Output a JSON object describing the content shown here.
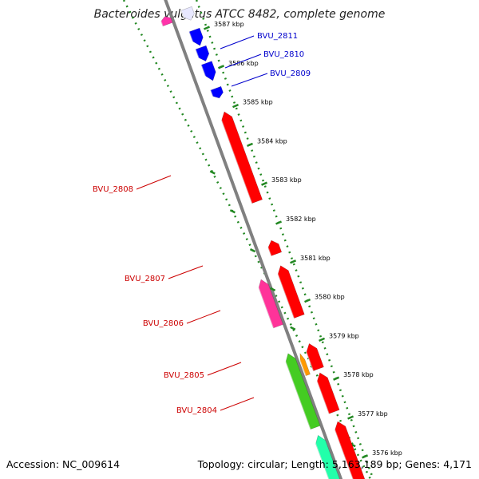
{
  "title": "Bacteroides vulgatus ATCC 8482, complete genome",
  "footer": {
    "accession": "Accession: NC_009614",
    "summary": "Topology: circular; Length: 5,163,189 bp; Genes: 4,171"
  },
  "colors": {
    "forward_label": "#0000cc",
    "reverse_label": "#cc0000",
    "scale_tick": "#228822",
    "backbone": "#808080"
  },
  "scale": {
    "unit": "kbp",
    "ticks": [
      {
        "kbp": 3587,
        "label": "3587 kbp"
      },
      {
        "kbp": 3586,
        "label": "3586 kbp"
      },
      {
        "kbp": 3585,
        "label": "3585 kbp"
      },
      {
        "kbp": 3584,
        "label": "3584 kbp"
      },
      {
        "kbp": 3583,
        "label": "3583 kbp"
      },
      {
        "kbp": 3582,
        "label": "3582 kbp"
      },
      {
        "kbp": 3581,
        "label": "3581 kbp"
      },
      {
        "kbp": 3580,
        "label": "3580 kbp"
      },
      {
        "kbp": 3579,
        "label": "3579 kbp"
      },
      {
        "kbp": 3578,
        "label": "3578 kbp"
      },
      {
        "kbp": 3577,
        "label": "3577 kbp"
      },
      {
        "kbp": 3576,
        "label": "3576 kbp"
      }
    ]
  },
  "labels": [
    {
      "name": "BVU_2811",
      "strand": "forward"
    },
    {
      "name": "BVU_2810",
      "strand": "forward"
    },
    {
      "name": "BVU_2809",
      "strand": "forward"
    },
    {
      "name": "BVU_2808",
      "strand": "reverse"
    },
    {
      "name": "BVU_2807",
      "strand": "reverse"
    },
    {
      "name": "BVU_2806",
      "strand": "reverse"
    },
    {
      "name": "BVU_2805",
      "strand": "reverse"
    },
    {
      "name": "BVU_2804",
      "strand": "reverse"
    }
  ],
  "features": [
    {
      "start": 3587.35,
      "end": 3587.05,
      "lane": "in",
      "color": "#e8e8ff",
      "dir": 1
    },
    {
      "start": 3587.35,
      "end": 3587.15,
      "lane": "out",
      "color": "#ff33aa",
      "dir": -1
    },
    {
      "start": 3586.8,
      "end": 3586.4,
      "lane": "in",
      "color": "#0000ff",
      "dir": 1
    },
    {
      "start": 3586.35,
      "end": 3586.0,
      "lane": "in",
      "color": "#0000ff",
      "dir": 1
    },
    {
      "start": 3585.95,
      "end": 3585.5,
      "lane": "in",
      "color": "#0000ff",
      "dir": 1
    },
    {
      "start": 3585.3,
      "end": 3585.05,
      "lane": "in",
      "color": "#0000ff",
      "dir": 1
    },
    {
      "start": 3584.7,
      "end": 3582.4,
      "lane": "in",
      "color": "#ff0000",
      "dir": -1
    },
    {
      "start": 3581.4,
      "end": 3581.05,
      "lane": "in",
      "color": "#ff0000",
      "dir": -1
    },
    {
      "start": 3580.6,
      "end": 3579.4,
      "lane": "out",
      "color": "#ff3399",
      "dir": -1
    },
    {
      "start": 3580.75,
      "end": 3579.45,
      "lane": "in",
      "color": "#ff0000",
      "dir": -1
    },
    {
      "start": 3578.7,
      "end": 3576.8,
      "lane": "out",
      "color": "#44cc22",
      "dir": -1
    },
    {
      "start": 3578.6,
      "end": 3578.05,
      "lane": "mid",
      "color": "#ff9900",
      "dir": -1
    },
    {
      "start": 3578.75,
      "end": 3578.1,
      "lane": "in",
      "color": "#ff0000",
      "dir": -1
    },
    {
      "start": 3578.0,
      "end": 3577.0,
      "lane": "in",
      "color": "#ff0000",
      "dir": -1
    },
    {
      "start": 3576.6,
      "end": 3575.2,
      "lane": "out",
      "color": "#22ffaa",
      "dir": -1
    },
    {
      "start": 3576.75,
      "end": 3575.2,
      "lane": "in",
      "color": "#ff0000",
      "dir": -1
    }
  ]
}
